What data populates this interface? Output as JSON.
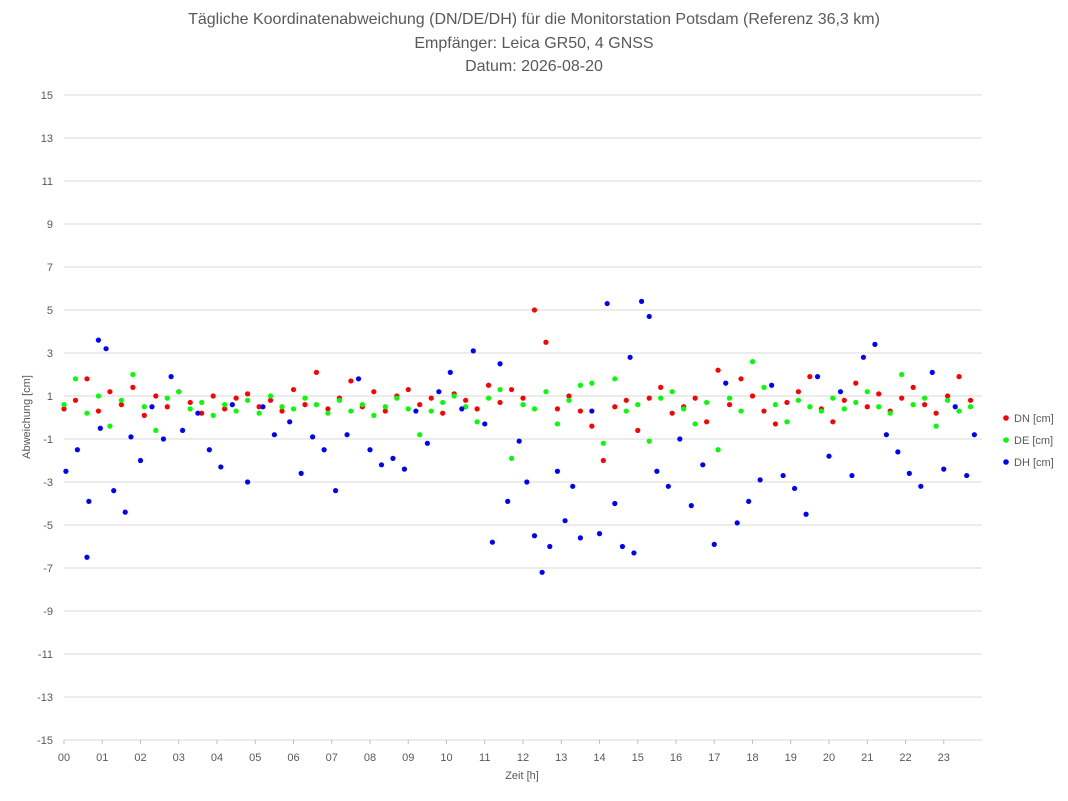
{
  "chart_data": {
    "type": "scatter",
    "title": "Tägliche Koordinatenabweichung (DN/DE/DH) für die Monitorstation Potsdam (Referenz 36,3 km)",
    "subtitle": "Empfänger: Leica GR50, 4 GNSS",
    "subtitle2": "Datum: 2026-08-20",
    "xlabel": "Zeit [h]",
    "ylabel": "Abweichung [cm]",
    "xlim": [
      0,
      24
    ],
    "ylim": [
      -15,
      15
    ],
    "x_ticks": [
      "00",
      "01",
      "02",
      "03",
      "04",
      "05",
      "06",
      "07",
      "08",
      "09",
      "10",
      "11",
      "12",
      "13",
      "14",
      "15",
      "16",
      "17",
      "18",
      "19",
      "20",
      "21",
      "22",
      "23"
    ],
    "y_ticks": [
      15,
      13,
      11,
      9,
      7,
      5,
      3,
      1,
      -1,
      -3,
      -5,
      -7,
      -9,
      -11,
      -13,
      -15
    ],
    "grid": "horizontal",
    "legend_position": "right",
    "series": [
      {
        "name": "DN [cm]",
        "color": "#ff0000",
        "x": [
          0.0,
          0.3,
          0.6,
          0.9,
          1.2,
          1.5,
          1.8,
          2.1,
          2.4,
          2.7,
          3.0,
          3.3,
          3.6,
          3.9,
          4.2,
          4.5,
          4.8,
          5.1,
          5.4,
          5.7,
          6.0,
          6.3,
          6.6,
          6.9,
          7.2,
          7.5,
          7.8,
          8.1,
          8.4,
          8.7,
          9.0,
          9.3,
          9.6,
          9.9,
          10.2,
          10.5,
          10.8,
          11.1,
          11.4,
          11.7,
          12.0,
          12.3,
          12.6,
          12.9,
          13.2,
          13.5,
          13.8,
          14.1,
          14.4,
          14.7,
          15.0,
          15.3,
          15.6,
          15.9,
          16.2,
          16.5,
          16.8,
          17.1,
          17.4,
          17.7,
          18.0,
          18.3,
          18.6,
          18.9,
          19.2,
          19.5,
          19.8,
          20.1,
          20.4,
          20.7,
          21.0,
          21.3,
          21.6,
          21.9,
          22.2,
          22.5,
          22.8,
          23.1,
          23.4,
          23.7
        ],
        "y": [
          0.4,
          0.8,
          1.8,
          0.3,
          1.2,
          0.6,
          1.4,
          0.1,
          1.0,
          0.5,
          1.2,
          0.7,
          0.2,
          1.0,
          0.4,
          0.9,
          1.1,
          0.5,
          0.8,
          0.3,
          1.3,
          0.6,
          2.1,
          0.4,
          0.9,
          1.7,
          0.5,
          1.2,
          0.3,
          1.0,
          1.3,
          0.6,
          0.9,
          0.2,
          1.1,
          0.8,
          0.4,
          1.5,
          0.7,
          1.3,
          0.9,
          5.0,
          3.5,
          0.4,
          1.0,
          0.3,
          -0.4,
          -2.0,
          0.5,
          0.8,
          -0.6,
          0.9,
          1.4,
          0.2,
          0.5,
          0.9,
          -0.2,
          2.2,
          0.6,
          1.8,
          1.0,
          0.3,
          -0.3,
          0.7,
          1.2,
          1.9,
          0.4,
          -0.2,
          0.8,
          1.6,
          0.5,
          1.1,
          0.3,
          0.9,
          1.4,
          0.6,
          0.2,
          1.0,
          1.9,
          0.8
        ],
        "labels": []
      },
      {
        "name": "DE [cm]",
        "color": "#00ff00",
        "x": [
          0.0,
          0.3,
          0.6,
          0.9,
          1.2,
          1.5,
          1.8,
          2.1,
          2.4,
          2.7,
          3.0,
          3.3,
          3.6,
          3.9,
          4.2,
          4.5,
          4.8,
          5.1,
          5.4,
          5.7,
          6.0,
          6.3,
          6.6,
          6.9,
          7.2,
          7.5,
          7.8,
          8.1,
          8.4,
          8.7,
          9.0,
          9.3,
          9.6,
          9.9,
          10.2,
          10.5,
          10.8,
          11.1,
          11.4,
          11.7,
          12.0,
          12.3,
          12.6,
          12.9,
          13.2,
          13.5,
          13.8,
          14.1,
          14.4,
          14.7,
          15.0,
          15.3,
          15.6,
          15.9,
          16.2,
          16.5,
          16.8,
          17.1,
          17.4,
          17.7,
          18.0,
          18.3,
          18.6,
          18.9,
          19.2,
          19.5,
          19.8,
          20.1,
          20.4,
          20.7,
          21.0,
          21.3,
          21.6,
          21.9,
          22.2,
          22.5,
          22.8,
          23.1,
          23.4,
          23.7
        ],
        "y": [
          0.6,
          1.8,
          0.2,
          1.0,
          -0.4,
          0.8,
          2.0,
          0.5,
          -0.6,
          0.9,
          1.2,
          0.4,
          0.7,
          0.1,
          0.6,
          0.3,
          0.8,
          0.2,
          1.0,
          0.5,
          0.4,
          0.9,
          0.6,
          0.2,
          0.8,
          0.3,
          0.6,
          0.1,
          0.5,
          0.9,
          0.4,
          -0.8,
          0.3,
          0.7,
          1.0,
          0.5,
          -0.2,
          0.9,
          1.3,
          -1.9,
          0.6,
          0.4,
          1.2,
          -0.3,
          0.8,
          1.5,
          1.6,
          -1.2,
          1.8,
          0.3,
          0.6,
          -1.1,
          0.9,
          1.2,
          0.4,
          -0.3,
          0.7,
          -1.5,
          0.9,
          0.3,
          2.6,
          1.4,
          0.6,
          -0.2,
          0.8,
          0.5,
          0.3,
          0.9,
          0.4,
          0.7,
          1.2,
          0.5,
          0.2,
          2.0,
          0.6,
          0.9,
          -0.4,
          0.8,
          0.3,
          0.5
        ],
        "labels": []
      },
      {
        "name": "DH [cm]",
        "color": "#0000ff",
        "x": [
          0.05,
          0.35,
          0.6,
          0.65,
          0.9,
          0.95,
          1.1,
          1.3,
          1.6,
          1.75,
          2.0,
          2.3,
          2.6,
          2.8,
          3.1,
          3.5,
          3.8,
          4.1,
          4.4,
          4.8,
          5.2,
          5.5,
          5.9,
          6.2,
          6.5,
          6.8,
          7.1,
          7.4,
          7.7,
          8.0,
          8.3,
          8.6,
          8.9,
          9.2,
          9.5,
          9.8,
          10.1,
          10.4,
          10.7,
          11.0,
          11.2,
          11.4,
          11.6,
          11.9,
          12.1,
          12.3,
          12.5,
          12.7,
          12.9,
          13.1,
          13.3,
          13.5,
          13.8,
          14.0,
          14.2,
          14.4,
          14.6,
          14.8,
          14.9,
          15.1,
          15.3,
          15.5,
          15.8,
          16.1,
          16.4,
          16.7,
          17.0,
          17.3,
          17.6,
          17.9,
          18.2,
          18.5,
          18.8,
          19.1,
          19.4,
          19.7,
          20.0,
          20.3,
          20.6,
          20.9,
          21.2,
          21.5,
          21.8,
          22.1,
          22.4,
          22.7,
          23.0,
          23.3,
          23.6,
          23.8
        ],
        "y": [
          -2.5,
          -1.5,
          -6.5,
          -3.9,
          3.6,
          -0.5,
          3.2,
          -3.4,
          -4.4,
          -0.9,
          -2.0,
          0.5,
          -1.0,
          1.9,
          -0.6,
          0.2,
          -1.5,
          -2.3,
          0.6,
          -3.0,
          0.5,
          -0.8,
          -0.2,
          -2.6,
          -0.9,
          -1.5,
          -3.4,
          -0.8,
          1.8,
          -1.5,
          -2.2,
          -1.9,
          -2.4,
          0.3,
          -1.2,
          1.2,
          2.1,
          0.4,
          3.1,
          -0.3,
          -5.8,
          2.5,
          -3.9,
          -1.1,
          -3.0,
          -5.5,
          -7.2,
          -6.0,
          -2.5,
          -4.8,
          -3.2,
          -5.6,
          0.3,
          -5.4,
          5.3,
          -4.0,
          -6.0,
          2.8,
          -6.3,
          5.4,
          4.7,
          -2.5,
          -3.2,
          -1.0,
          -4.1,
          -2.2,
          -5.9,
          1.6,
          -4.9,
          -3.9,
          -2.9,
          1.5,
          -2.7,
          -3.3,
          -4.5,
          1.9,
          -1.8,
          1.2,
          -2.7,
          2.8,
          3.4,
          -0.8,
          -1.6,
          -2.6,
          -3.2,
          2.1,
          -2.4,
          0.5,
          -2.7,
          -0.8
        ],
        "labels": []
      }
    ]
  }
}
